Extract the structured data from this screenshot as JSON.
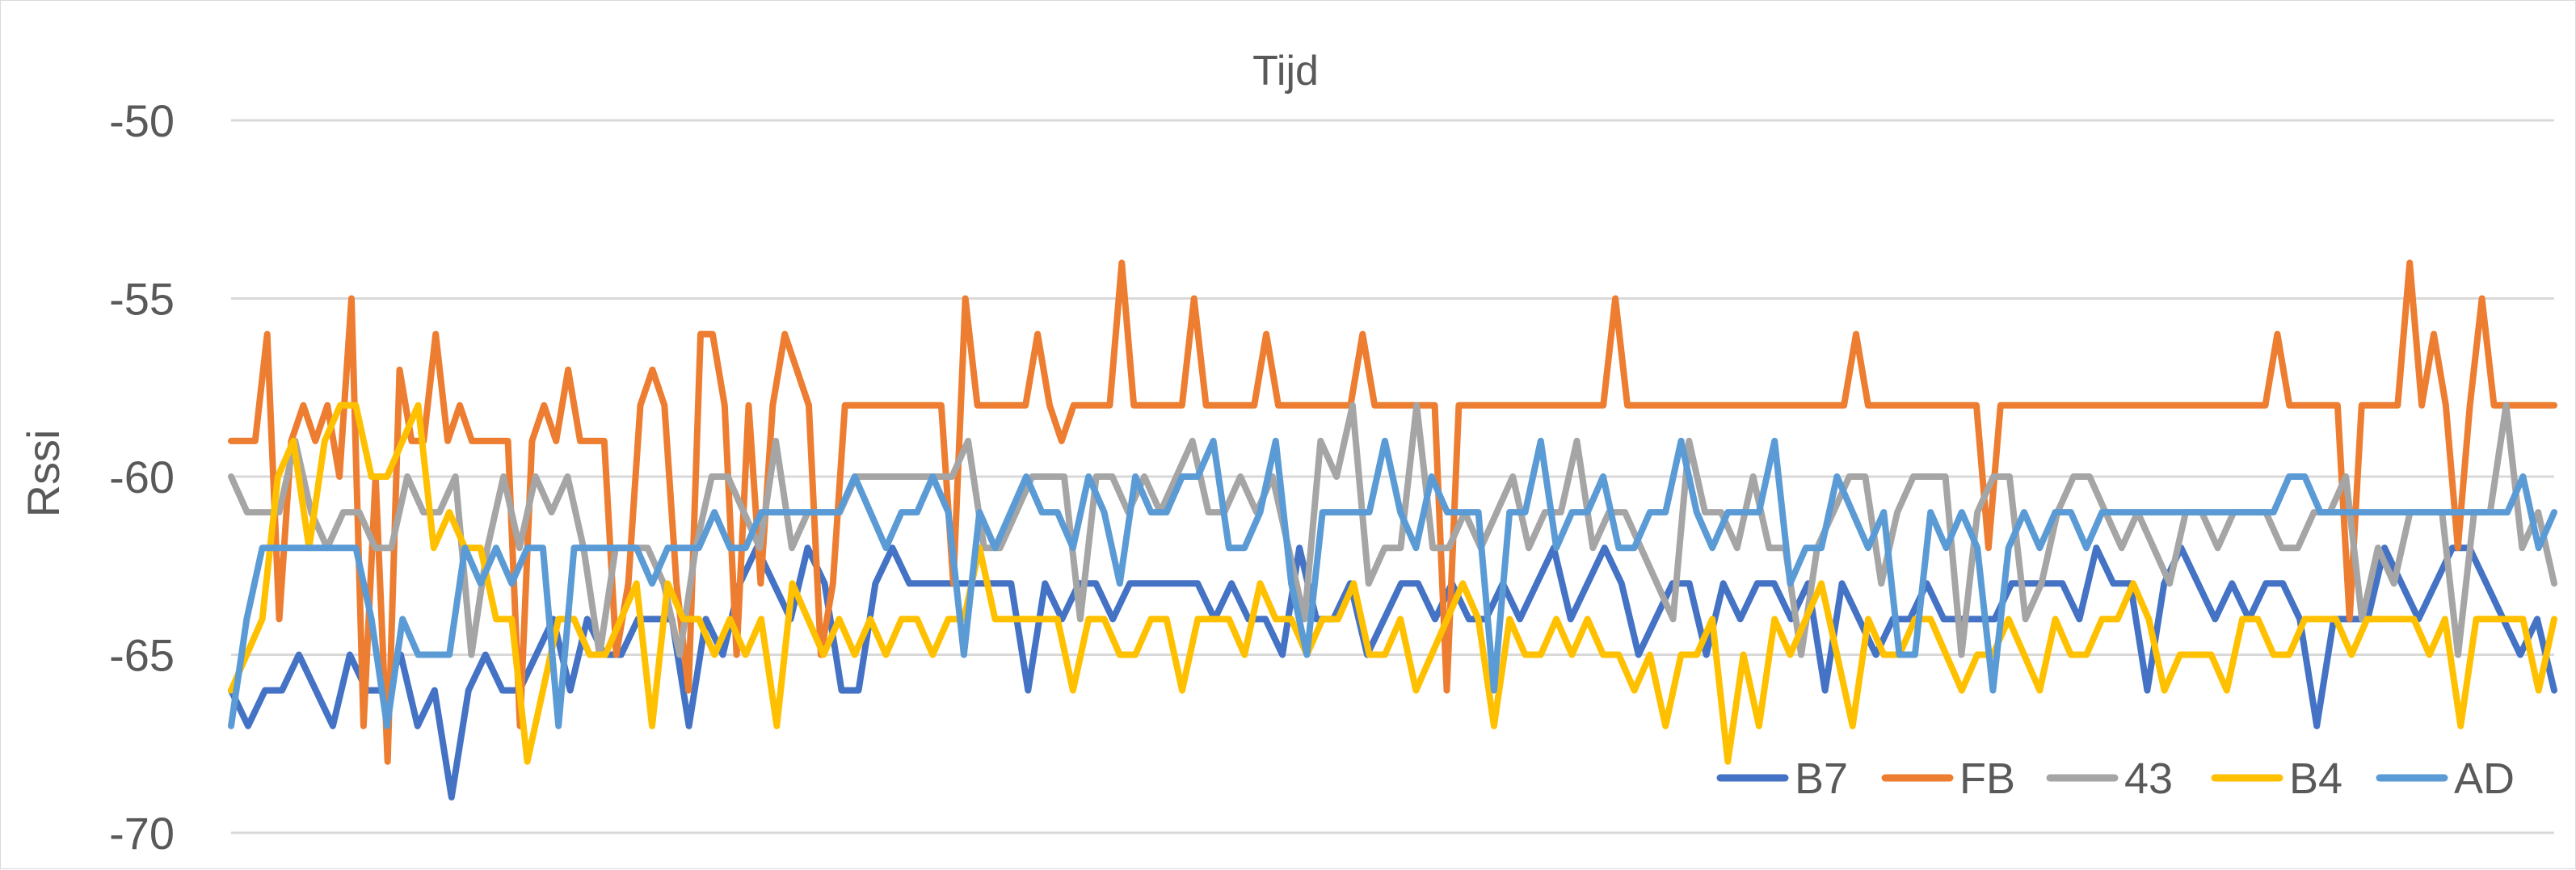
{
  "chart_data": {
    "type": "line",
    "title": "Tijd",
    "xlabel": "",
    "ylabel": "Rssi",
    "ylim": [
      -70,
      -50
    ],
    "yticks": [
      -50,
      -55,
      -60,
      -65,
      -70
    ],
    "grid": true,
    "legend_position": "bottom-right",
    "series": [
      {
        "name": "B7",
        "color": "#4472C4",
        "values": [
          -66,
          -67,
          -66,
          -66,
          -65,
          -66,
          -67,
          -65,
          -66,
          -66,
          -65,
          -67,
          -66,
          -69,
          -66,
          -65,
          -66,
          -66,
          -65,
          -64,
          -66,
          -64,
          -65,
          -65,
          -64,
          -64,
          -64,
          -67,
          -64,
          -65,
          -63,
          -62,
          -63,
          -64,
          -62,
          -63,
          -66,
          -66,
          -63,
          -62,
          -63,
          -63,
          -63,
          -63,
          -63,
          -63,
          -63,
          -66,
          -63,
          -64,
          -63,
          -63,
          -64,
          -63,
          -63,
          -63,
          -63,
          -63,
          -64,
          -63,
          -64,
          -64,
          -65,
          -62,
          -64,
          -64,
          -63,
          -65,
          -64,
          -63,
          -63,
          -64,
          -63,
          -64,
          -64,
          -63,
          -64,
          -63,
          -62,
          -64,
          -63,
          -62,
          -63,
          -65,
          -64,
          -63,
          -63,
          -65,
          -63,
          -64,
          -63,
          -63,
          -64,
          -63,
          -66,
          -63,
          -64,
          -65,
          -64,
          -64,
          -63,
          -64,
          -64,
          -64,
          -64,
          -63,
          -63,
          -63,
          -63,
          -64,
          -62,
          -63,
          -63,
          -66,
          -63,
          -62,
          -63,
          -64,
          -63,
          -64,
          -63,
          -63,
          -64,
          -67,
          -64,
          -64,
          -64,
          -62,
          -63,
          -64,
          -63,
          -62,
          -62,
          -63,
          -64,
          -65,
          -64,
          -66
        ]
      },
      {
        "name": "FB",
        "color": "#ED7D31",
        "values": [
          -59,
          -59,
          -59,
          -56,
          -64,
          -59,
          -58,
          -59,
          -58,
          -60,
          -55,
          -67,
          -60,
          -68,
          -57,
          -59,
          -59,
          -56,
          -59,
          -58,
          -59,
          -59,
          -59,
          -59,
          -67,
          -59,
          -58,
          -59,
          -57,
          -59,
          -59,
          -59,
          -65,
          -63,
          -58,
          -57,
          -58,
          -63,
          -66,
          -56,
          -56,
          -58,
          -65,
          -58,
          -63,
          -58,
          -56,
          -57,
          -58,
          -65,
          -63,
          -58,
          -58,
          -58,
          -58,
          -58,
          -58,
          -58,
          -58,
          -58,
          -63,
          -55,
          -58,
          -58,
          -58,
          -58,
          -58,
          -56,
          -58,
          -59,
          -58,
          -58,
          -58,
          -58,
          -54,
          -58,
          -58,
          -58,
          -58,
          -58,
          -55,
          -58,
          -58,
          -58,
          -58,
          -58,
          -56,
          -58,
          -58,
          -58,
          -58,
          -58,
          -58,
          -58,
          -56,
          -58,
          -58,
          -58,
          -58,
          -58,
          -58,
          -66,
          -58,
          -58,
          -58,
          -58,
          -58,
          -58,
          -58,
          -58,
          -58,
          -58,
          -58,
          -58,
          -58,
          -55,
          -58,
          -58,
          -58,
          -58,
          -58,
          -58,
          -58,
          -58,
          -58,
          -58,
          -58,
          -58,
          -58,
          -58,
          -58,
          -58,
          -58,
          -58,
          -58,
          -56,
          -58,
          -58,
          -58,
          -58,
          -58,
          -58,
          -58,
          -58,
          -58,
          -58,
          -62,
          -58,
          -58,
          -58,
          -58,
          -58,
          -58,
          -58,
          -58,
          -58,
          -58,
          -58,
          -58,
          -58,
          -58,
          -58,
          -58,
          -58,
          -58,
          -58,
          -58,
          -58,
          -58,
          -58,
          -56,
          -58,
          -58,
          -58,
          -58,
          -58,
          -64,
          -58,
          -58,
          -58,
          -58,
          -54,
          -58,
          -56,
          -58,
          -62,
          -58,
          -55,
          -58,
          -58,
          -58,
          -58,
          -58,
          -58
        ]
      },
      {
        "name": "43",
        "color": "#A5A5A5",
        "values": [
          -60,
          -61,
          -61,
          -61,
          -59,
          -61,
          -62,
          -61,
          -61,
          -62,
          -62,
          -60,
          -61,
          -61,
          -60,
          -65,
          -62,
          -60,
          -62,
          -60,
          -61,
          -60,
          -62,
          -65,
          -62,
          -62,
          -62,
          -63,
          -65,
          -62,
          -60,
          -60,
          -61,
          -62,
          -59,
          -62,
          -61,
          -61,
          -61,
          -60,
          -60,
          -60,
          -60,
          -60,
          -60,
          -60,
          -59,
          -62,
          -62,
          -61,
          -60,
          -60,
          -60,
          -64,
          -60,
          -60,
          -61,
          -60,
          -61,
          -60,
          -59,
          -61,
          -61,
          -60,
          -61,
          -60,
          -62,
          -64,
          -59,
          -60,
          -58,
          -63,
          -62,
          -62,
          -58,
          -62,
          -62,
          -61,
          -62,
          -61,
          -60,
          -62,
          -61,
          -61,
          -59,
          -62,
          -61,
          -61,
          -62,
          -63,
          -64,
          -59,
          -61,
          -61,
          -62,
          -60,
          -62,
          -62,
          -65,
          -62,
          -61,
          -60,
          -60,
          -63,
          -61,
          -60,
          -60,
          -60,
          -65,
          -61,
          -60,
          -60,
          -64,
          -63,
          -61,
          -60,
          -60,
          -61,
          -62,
          -61,
          -62,
          -63,
          -61,
          -61,
          -62,
          -61,
          -61,
          -61,
          -62,
          -62,
          -61,
          -61,
          -60,
          -64,
          -62,
          -63,
          -61,
          -61,
          -61,
          -65,
          -61,
          -61,
          -58,
          -62,
          -61,
          -63
        ]
      },
      {
        "name": "B4",
        "color": "#FFC000",
        "values": [
          -66,
          -65,
          -64,
          -60,
          -59,
          -62,
          -59,
          -58,
          -58,
          -60,
          -60,
          -59,
          -58,
          -62,
          -61,
          -62,
          -62,
          -64,
          -64,
          -68,
          -66,
          -64,
          -64,
          -65,
          -65,
          -64,
          -63,
          -67,
          -63,
          -64,
          -64,
          -65,
          -64,
          -65,
          -64,
          -67,
          -63,
          -64,
          -65,
          -64,
          -65,
          -64,
          -65,
          -64,
          -64,
          -65,
          -64,
          -64,
          -62,
          -64,
          -64,
          -64,
          -64,
          -64,
          -66,
          -64,
          -64,
          -65,
          -65,
          -64,
          -64,
          -66,
          -64,
          -64,
          -64,
          -65,
          -63,
          -64,
          -64,
          -65,
          -64,
          -64,
          -63,
          -65,
          -65,
          -64,
          -66,
          -65,
          -64,
          -63,
          -64,
          -67,
          -64,
          -65,
          -65,
          -64,
          -65,
          -64,
          -65,
          -65,
          -66,
          -65,
          -67,
          -65,
          -65,
          -64,
          -68,
          -65,
          -67,
          -64,
          -65,
          -64,
          -63,
          -65,
          -67,
          -64,
          -65,
          -65,
          -64,
          -64,
          -65,
          -66,
          -65,
          -65,
          -64,
          -65,
          -66,
          -64,
          -65,
          -65,
          -64,
          -64,
          -63,
          -64,
          -66,
          -65,
          -65,
          -65,
          -66,
          -64,
          -64,
          -65,
          -65,
          -64,
          -64,
          -64,
          -65,
          -64,
          -64,
          -64,
          -64,
          -65,
          -64,
          -67,
          -64,
          -64,
          -64,
          -64,
          -66,
          -64
        ]
      },
      {
        "name": "AD",
        "color": "#5B9BD5",
        "values": [
          -67,
          -64,
          -62,
          -62,
          -62,
          -62,
          -62,
          -62,
          -62,
          -64,
          -67,
          -64,
          -65,
          -65,
          -65,
          -62,
          -63,
          -62,
          -63,
          -62,
          -62,
          -67,
          -62,
          -62,
          -62,
          -62,
          -62,
          -63,
          -62,
          -62,
          -62,
          -61,
          -62,
          -62,
          -61,
          -61,
          -61,
          -61,
          -61,
          -61,
          -60,
          -61,
          -62,
          -61,
          -61,
          -60,
          -61,
          -65,
          -61,
          -62,
          -61,
          -60,
          -61,
          -61,
          -62,
          -60,
          -61,
          -63,
          -60,
          -61,
          -61,
          -60,
          -60,
          -59,
          -62,
          -62,
          -61,
          -59,
          -63,
          -65,
          -61,
          -61,
          -61,
          -61,
          -59,
          -61,
          -62,
          -60,
          -61,
          -61,
          -61,
          -66,
          -61,
          -61,
          -59,
          -62,
          -61,
          -61,
          -60,
          -62,
          -62,
          -61,
          -61,
          -59,
          -61,
          -62,
          -61,
          -61,
          -61,
          -59,
          -63,
          -62,
          -62,
          -60,
          -61,
          -62,
          -61,
          -65,
          -65,
          -61,
          -62,
          -61,
          -62,
          -66,
          -62,
          -61,
          -62,
          -61,
          -61,
          -62,
          -61,
          -61,
          -61,
          -61,
          -61,
          -61,
          -61,
          -61,
          -61,
          -61,
          -61,
          -61,
          -60,
          -60,
          -61,
          -61,
          -61,
          -61,
          -61,
          -61,
          -61,
          -61,
          -61,
          -61,
          -61,
          -61,
          -61,
          -60,
          -62,
          -61
        ]
      }
    ]
  }
}
